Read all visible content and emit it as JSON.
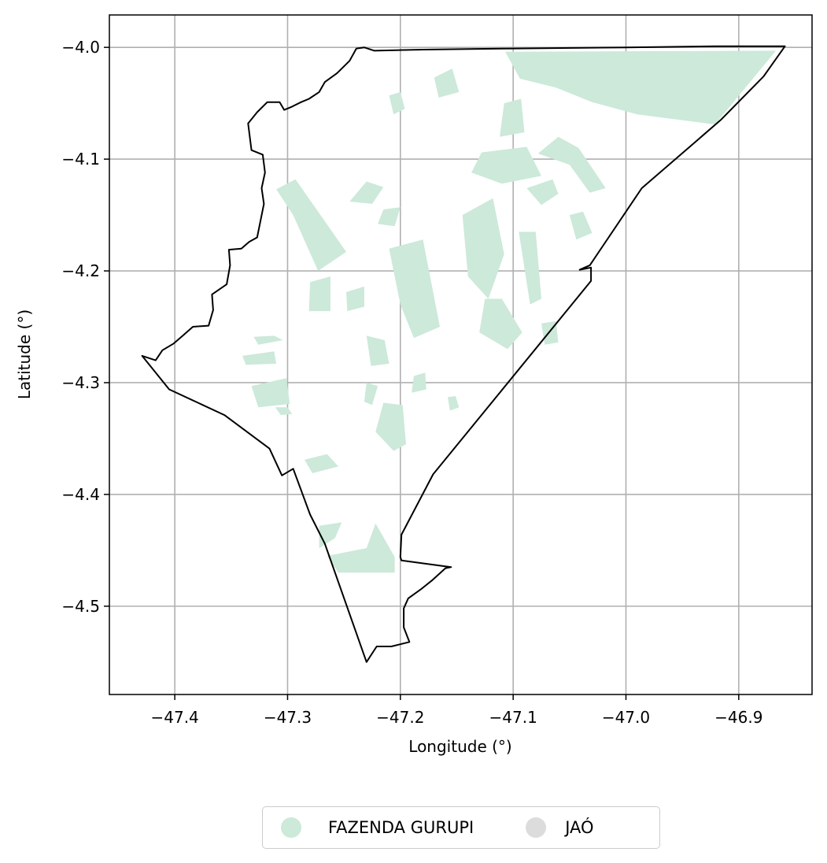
{
  "chart_data": {
    "type": "map",
    "xlabel": "Longitude (°)",
    "ylabel": "Latitude (°)",
    "xlim": [
      -47.458,
      -46.835
    ],
    "ylim": [
      -4.579,
      -3.971
    ],
    "xticks": [
      -47.4,
      -47.3,
      -47.2,
      -47.1,
      -47.0,
      -46.9
    ],
    "xtick_labels": [
      "−47.4",
      "−47.3",
      "−47.2",
      "−47.1",
      "−47.0",
      "−46.9"
    ],
    "yticks": [
      -4.0,
      -4.1,
      -4.2,
      -4.3,
      -4.4,
      -4.5
    ],
    "ytick_labels": [
      "−4.0",
      "−4.1",
      "−4.2",
      "−4.3",
      "−4.4",
      "−4.5"
    ],
    "grid": true,
    "legend_position": "below plot, centered",
    "legend": [
      {
        "label": "FAZENDA GURUPI",
        "color": "#cce9da"
      },
      {
        "label": "JAÓ",
        "color": "#dcdcdc"
      }
    ],
    "boundary": [
      [
        -46.859,
        -3.999
      ],
      [
        -46.878,
        -4.026
      ],
      [
        -46.916,
        -4.065
      ],
      [
        -46.986,
        -4.126
      ],
      [
        -47.032,
        -4.195
      ],
      [
        -47.041,
        -4.199
      ],
      [
        -47.031,
        -4.197
      ],
      [
        -47.031,
        -4.209
      ],
      [
        -47.171,
        -4.382
      ],
      [
        -47.199,
        -4.436
      ],
      [
        -47.2,
        -4.456
      ],
      [
        -47.199,
        -4.459
      ],
      [
        -47.155,
        -4.465
      ],
      [
        -47.16,
        -4.466
      ],
      [
        -47.172,
        -4.477
      ],
      [
        -47.182,
        -4.485
      ],
      [
        -47.193,
        -4.493
      ],
      [
        -47.197,
        -4.502
      ],
      [
        -47.197,
        -4.519
      ],
      [
        -47.192,
        -4.532
      ],
      [
        -47.208,
        -4.536
      ],
      [
        -47.221,
        -4.536
      ],
      [
        -47.23,
        -4.55
      ],
      [
        -47.267,
        -4.444
      ],
      [
        -47.28,
        -4.418
      ],
      [
        -47.295,
        -4.377
      ],
      [
        -47.305,
        -4.383
      ],
      [
        -47.316,
        -4.359
      ],
      [
        -47.356,
        -4.329
      ],
      [
        -47.405,
        -4.306
      ],
      [
        -47.429,
        -4.276
      ],
      [
        -47.417,
        -4.28
      ],
      [
        -47.411,
        -4.271
      ],
      [
        -47.401,
        -4.265
      ],
      [
        -47.393,
        -4.258
      ],
      [
        -47.384,
        -4.25
      ],
      [
        -47.37,
        -4.249
      ],
      [
        -47.366,
        -4.235
      ],
      [
        -47.367,
        -4.221
      ],
      [
        -47.354,
        -4.212
      ],
      [
        -47.351,
        -4.195
      ],
      [
        -47.352,
        -4.181
      ],
      [
        -47.341,
        -4.18
      ],
      [
        -47.334,
        -4.174
      ],
      [
        -47.327,
        -4.17
      ],
      [
        -47.324,
        -4.155
      ],
      [
        -47.321,
        -4.14
      ],
      [
        -47.323,
        -4.126
      ],
      [
        -47.32,
        -4.112
      ],
      [
        -47.322,
        -4.096
      ],
      [
        -47.332,
        -4.092
      ],
      [
        -47.335,
        -4.068
      ],
      [
        -47.327,
        -4.058
      ],
      [
        -47.318,
        -4.049
      ],
      [
        -47.307,
        -4.049
      ],
      [
        -47.303,
        -4.056
      ],
      [
        -47.296,
        -4.053
      ],
      [
        -47.288,
        -4.049
      ],
      [
        -47.281,
        -4.046
      ],
      [
        -47.272,
        -4.04
      ],
      [
        -47.267,
        -4.031
      ],
      [
        -47.256,
        -4.023
      ],
      [
        -47.245,
        -4.012
      ],
      [
        -47.239,
        -4.001
      ],
      [
        -47.232,
        -4.0
      ],
      [
        -47.223,
        -4.003
      ],
      [
        -47.18,
        -4.002
      ],
      [
        -47.1,
        -4.001
      ],
      [
        -47.0,
        -4.0
      ],
      [
        -46.92,
        -3.999
      ],
      [
        -46.859,
        -3.999
      ]
    ],
    "fazenda_gurupi_patches": [
      [
        [
          -47.107,
          -4.004
        ],
        [
          -46.867,
          -4.003
        ],
        [
          -46.921,
          -4.069
        ],
        [
          -46.99,
          -4.06
        ],
        [
          -47.03,
          -4.049
        ],
        [
          -47.062,
          -4.036
        ],
        [
          -47.094,
          -4.028
        ]
      ],
      [
        [
          -47.108,
          -4.05
        ],
        [
          -47.093,
          -4.046
        ],
        [
          -47.09,
          -4.076
        ],
        [
          -47.112,
          -4.08
        ]
      ],
      [
        [
          -47.17,
          -4.027
        ],
        [
          -47.154,
          -4.019
        ],
        [
          -47.148,
          -4.04
        ],
        [
          -47.166,
          -4.045
        ]
      ],
      [
        [
          -47.21,
          -4.043
        ],
        [
          -47.2,
          -4.04
        ],
        [
          -47.196,
          -4.055
        ],
        [
          -47.206,
          -4.06
        ]
      ],
      [
        [
          -47.128,
          -4.094
        ],
        [
          -47.088,
          -4.089
        ],
        [
          -47.075,
          -4.115
        ],
        [
          -47.11,
          -4.122
        ],
        [
          -47.137,
          -4.112
        ]
      ],
      [
        [
          -47.06,
          -4.08
        ],
        [
          -47.042,
          -4.09
        ],
        [
          -47.018,
          -4.126
        ],
        [
          -47.032,
          -4.13
        ],
        [
          -47.05,
          -4.105
        ],
        [
          -47.078,
          -4.095
        ]
      ],
      [
        [
          -47.088,
          -4.126
        ],
        [
          -47.065,
          -4.118
        ],
        [
          -47.06,
          -4.131
        ],
        [
          -47.075,
          -4.141
        ]
      ],
      [
        [
          -47.05,
          -4.15
        ],
        [
          -47.038,
          -4.147
        ],
        [
          -47.03,
          -4.166
        ],
        [
          -47.044,
          -4.172
        ]
      ],
      [
        [
          -47.31,
          -4.127
        ],
        [
          -47.293,
          -4.118
        ],
        [
          -47.248,
          -4.183
        ],
        [
          -47.273,
          -4.2
        ],
        [
          -47.295,
          -4.15
        ]
      ],
      [
        [
          -47.23,
          -4.12
        ],
        [
          -47.215,
          -4.125
        ],
        [
          -47.225,
          -4.14
        ],
        [
          -47.245,
          -4.138
        ]
      ],
      [
        [
          -47.215,
          -4.145
        ],
        [
          -47.2,
          -4.143
        ],
        [
          -47.205,
          -4.16
        ],
        [
          -47.22,
          -4.158
        ]
      ],
      [
        [
          -47.145,
          -4.15
        ],
        [
          -47.118,
          -4.135
        ],
        [
          -47.108,
          -4.185
        ],
        [
          -47.122,
          -4.225
        ],
        [
          -47.14,
          -4.205
        ]
      ],
      [
        [
          -47.095,
          -4.165
        ],
        [
          -47.08,
          -4.165
        ],
        [
          -47.075,
          -4.225
        ],
        [
          -47.085,
          -4.23
        ]
      ],
      [
        [
          -47.28,
          -4.21
        ],
        [
          -47.262,
          -4.205
        ],
        [
          -47.262,
          -4.236
        ],
        [
          -47.281,
          -4.236
        ]
      ],
      [
        [
          -47.248,
          -4.219
        ],
        [
          -47.232,
          -4.214
        ],
        [
          -47.232,
          -4.232
        ],
        [
          -47.247,
          -4.236
        ]
      ],
      [
        [
          -47.21,
          -4.18
        ],
        [
          -47.18,
          -4.172
        ],
        [
          -47.165,
          -4.25
        ],
        [
          -47.188,
          -4.26
        ],
        [
          -47.2,
          -4.23
        ]
      ],
      [
        [
          -47.125,
          -4.225
        ],
        [
          -47.11,
          -4.225
        ],
        [
          -47.092,
          -4.255
        ],
        [
          -47.105,
          -4.27
        ],
        [
          -47.13,
          -4.255
        ]
      ],
      [
        [
          -47.075,
          -4.247
        ],
        [
          -47.062,
          -4.245
        ],
        [
          -47.06,
          -4.264
        ],
        [
          -47.072,
          -4.266
        ]
      ],
      [
        [
          -47.23,
          -4.258
        ],
        [
          -47.214,
          -4.262
        ],
        [
          -47.21,
          -4.283
        ],
        [
          -47.226,
          -4.285
        ]
      ],
      [
        [
          -47.33,
          -4.259
        ],
        [
          -47.312,
          -4.258
        ],
        [
          -47.304,
          -4.262
        ],
        [
          -47.326,
          -4.266
        ]
      ],
      [
        [
          -47.34,
          -4.276
        ],
        [
          -47.312,
          -4.272
        ],
        [
          -47.31,
          -4.283
        ],
        [
          -47.337,
          -4.284
        ]
      ],
      [
        [
          -47.332,
          -4.303
        ],
        [
          -47.301,
          -4.296
        ],
        [
          -47.298,
          -4.319
        ],
        [
          -47.326,
          -4.322
        ]
      ],
      [
        [
          -47.311,
          -4.322
        ],
        [
          -47.306,
          -4.329
        ],
        [
          -47.296,
          -4.328
        ],
        [
          -47.3,
          -4.322
        ]
      ],
      [
        [
          -47.23,
          -4.3
        ],
        [
          -47.22,
          -4.303
        ],
        [
          -47.225,
          -4.32
        ],
        [
          -47.232,
          -4.317
        ]
      ],
      [
        [
          -47.215,
          -4.318
        ],
        [
          -47.198,
          -4.32
        ],
        [
          -47.195,
          -4.355
        ],
        [
          -47.206,
          -4.361
        ],
        [
          -47.222,
          -4.344
        ]
      ],
      [
        [
          -47.188,
          -4.294
        ],
        [
          -47.178,
          -4.291
        ],
        [
          -47.177,
          -4.306
        ],
        [
          -47.19,
          -4.309
        ]
      ],
      [
        [
          -47.158,
          -4.313
        ],
        [
          -47.151,
          -4.312
        ],
        [
          -47.148,
          -4.322
        ],
        [
          -47.156,
          -4.325
        ]
      ],
      [
        [
          -47.285,
          -4.369
        ],
        [
          -47.265,
          -4.364
        ],
        [
          -47.255,
          -4.375
        ],
        [
          -47.278,
          -4.381
        ]
      ],
      [
        [
          -47.272,
          -4.428
        ],
        [
          -47.252,
          -4.425
        ],
        [
          -47.258,
          -4.439
        ],
        [
          -47.272,
          -4.448
        ]
      ],
      [
        [
          -47.265,
          -4.455
        ],
        [
          -47.23,
          -4.448
        ],
        [
          -47.222,
          -4.426
        ],
        [
          -47.205,
          -4.456
        ],
        [
          -47.205,
          -4.47
        ],
        [
          -47.255,
          -4.47
        ]
      ]
    ]
  }
}
